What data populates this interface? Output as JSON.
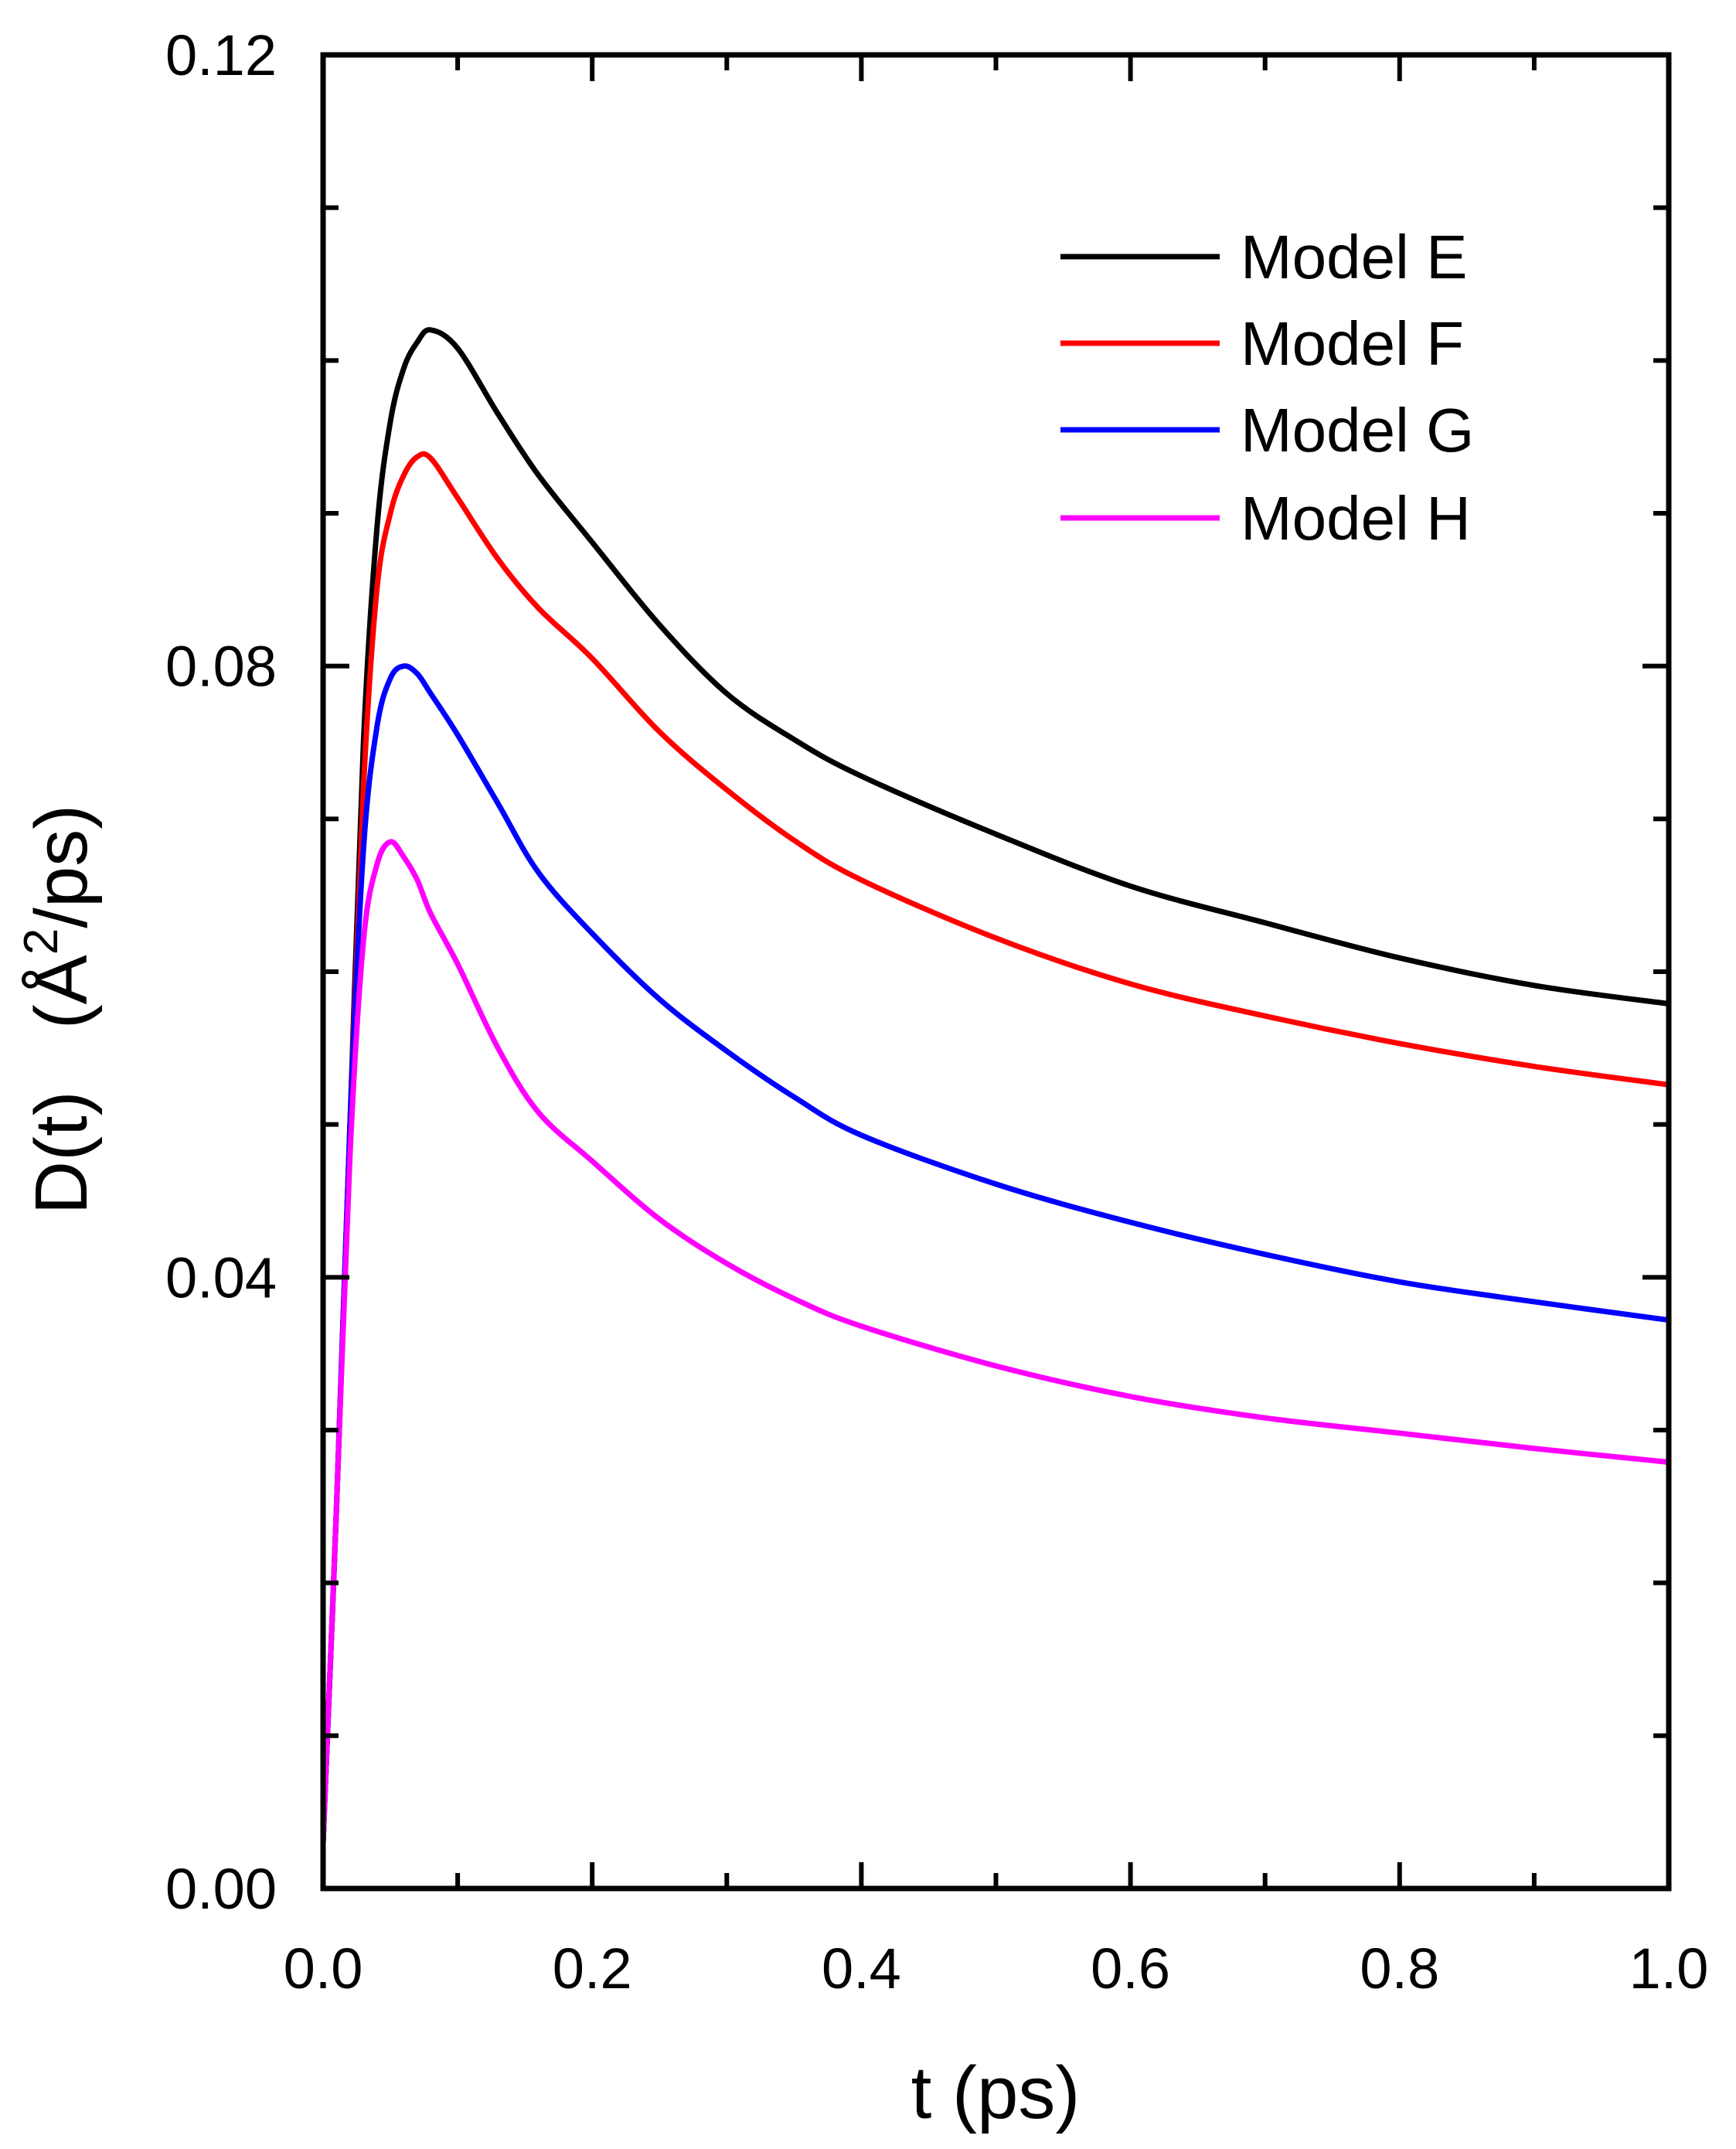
{
  "chart_data": {
    "type": "line",
    "title": "",
    "xlabel": "t (ps)",
    "ylabel_main": "D(t)",
    "ylabel_unit_prefix": "(Å",
    "ylabel_unit_sup": "2",
    "ylabel_unit_suffix": "/ps)",
    "xlim": [
      0.0,
      1.0
    ],
    "ylim": [
      0.0,
      0.12
    ],
    "xticks": [
      0.0,
      0.2,
      0.4,
      0.6,
      0.8,
      1.0
    ],
    "xtick_labels": [
      "0.0",
      "0.2",
      "0.4",
      "0.6",
      "0.8",
      "1.0"
    ],
    "xminor_step": 0.1,
    "yticks": [
      0.0,
      0.04,
      0.08,
      0.12
    ],
    "ytick_labels": [
      "0.00",
      "0.04",
      "0.08",
      "0.12"
    ],
    "yminor_step": 0.01,
    "grid": false,
    "legend_position": "top-right",
    "x": [
      0.0,
      0.01,
      0.02,
      0.03,
      0.04,
      0.05,
      0.06,
      0.07,
      0.08,
      0.1,
      0.13,
      0.16,
      0.2,
      0.25,
      0.3,
      0.35,
      0.4,
      0.5,
      0.6,
      0.7,
      0.8,
      0.9,
      1.0
    ],
    "series": [
      {
        "name": "Model E",
        "color": "#000000",
        "values": [
          0.003,
          0.025,
          0.05,
          0.075,
          0.089,
          0.096,
          0.0995,
          0.1012,
          0.102,
          0.1008,
          0.0965,
          0.0925,
          0.0881,
          0.0827,
          0.0782,
          0.0752,
          0.0728,
          0.069,
          0.0656,
          0.0632,
          0.0609,
          0.0591,
          0.0579
        ]
      },
      {
        "name": "Model F",
        "color": "#ff0000",
        "values": [
          0.003,
          0.025,
          0.05,
          0.072,
          0.085,
          0.09,
          0.0925,
          0.0937,
          0.0936,
          0.091,
          0.087,
          0.0838,
          0.0805,
          0.0757,
          0.0719,
          0.0686,
          0.066,
          0.0622,
          0.0592,
          0.0571,
          0.0553,
          0.0538,
          0.0526
        ]
      },
      {
        "name": "Model G",
        "color": "#0000ff",
        "values": [
          0.003,
          0.025,
          0.05,
          0.068,
          0.076,
          0.0792,
          0.08,
          0.0795,
          0.0782,
          0.0755,
          0.071,
          0.0665,
          0.0625,
          0.0582,
          0.0548,
          0.0518,
          0.0493,
          0.0461,
          0.0436,
          0.0415,
          0.0397,
          0.0384,
          0.0372
        ]
      },
      {
        "name": "Model H",
        "color": "#ff00ff",
        "values": [
          0.003,
          0.025,
          0.048,
          0.062,
          0.067,
          0.0685,
          0.0675,
          0.066,
          0.0638,
          0.0605,
          0.055,
          0.0508,
          0.0476,
          0.0438,
          0.0409,
          0.0386,
          0.0368,
          0.0342,
          0.0322,
          0.0308,
          0.0298,
          0.0288,
          0.0279
        ]
      }
    ]
  }
}
